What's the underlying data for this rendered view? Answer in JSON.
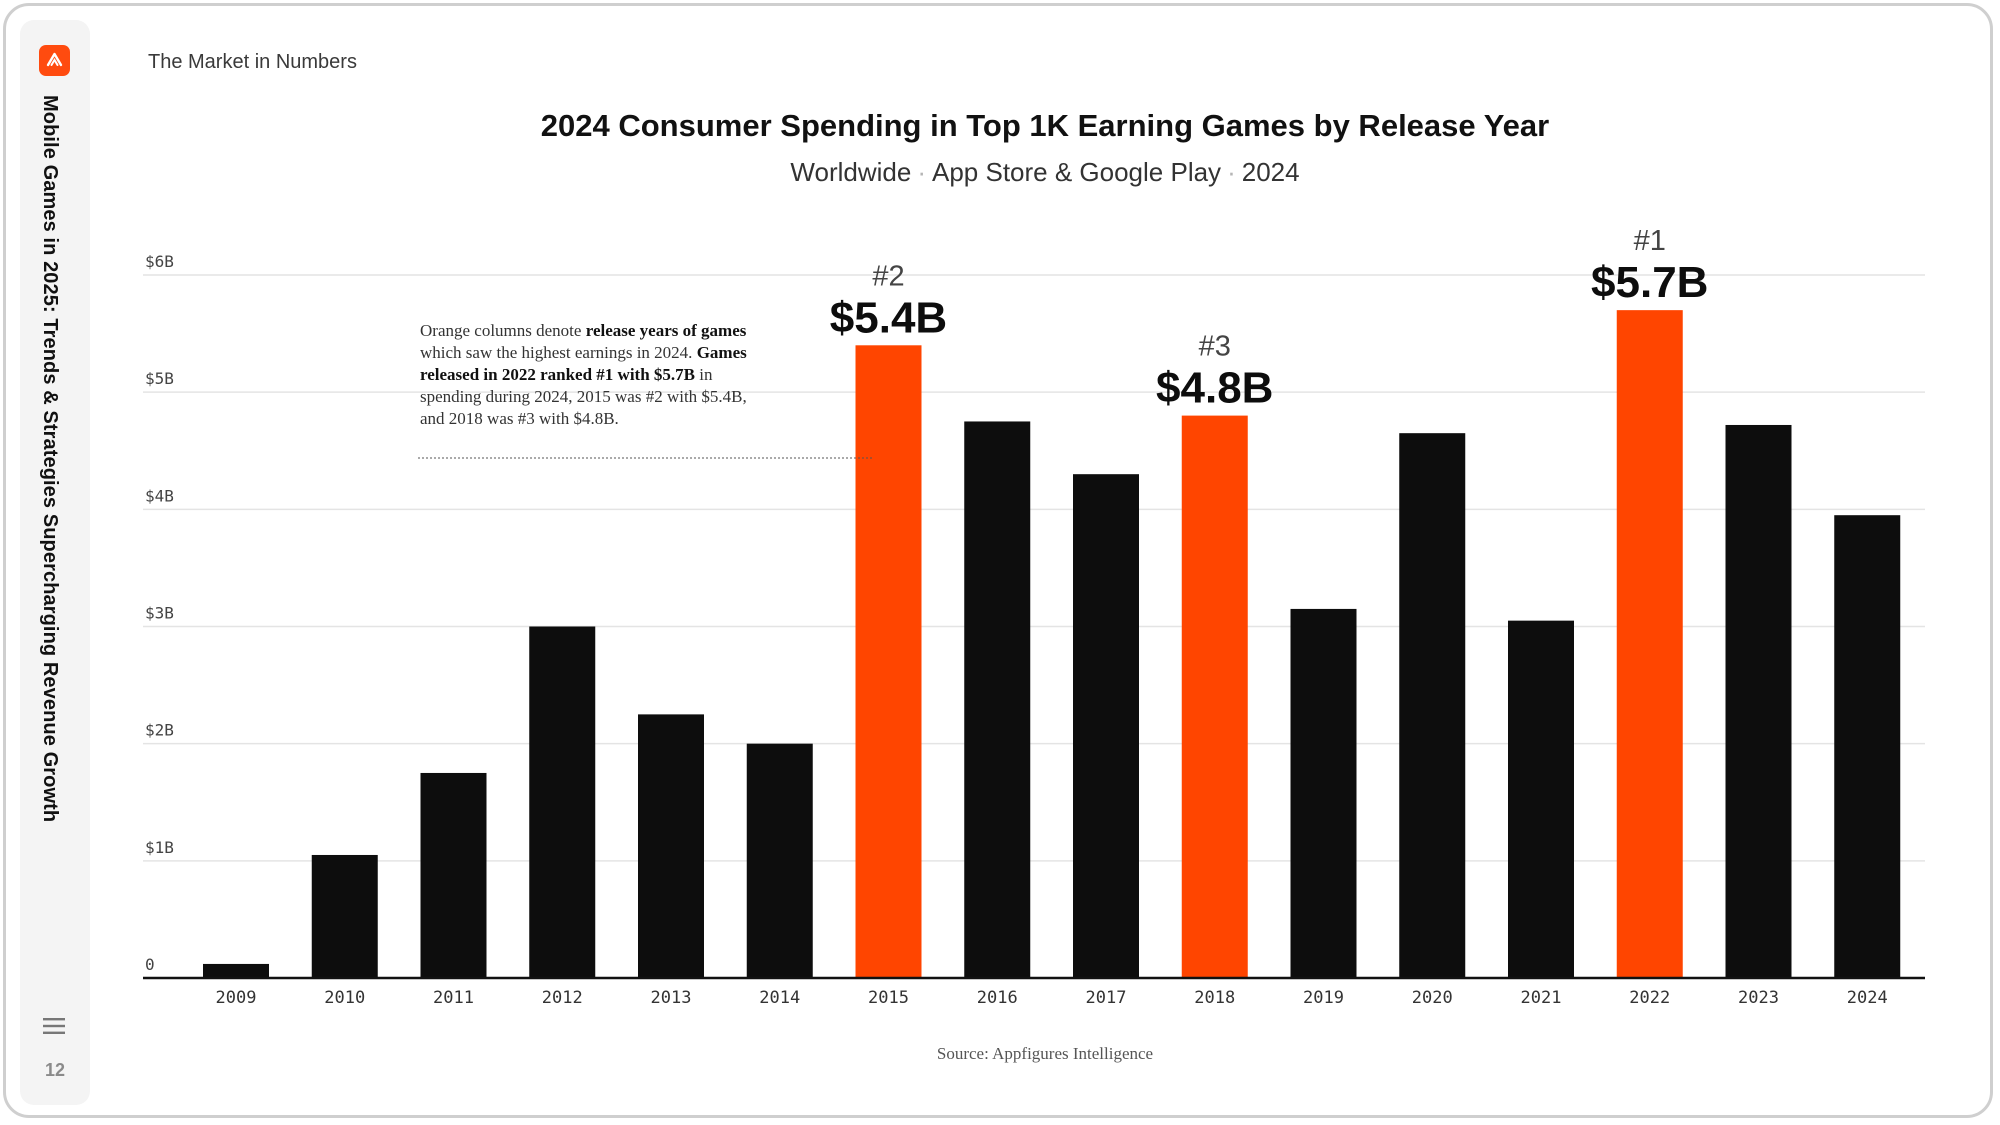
{
  "sidebar": {
    "doc_title": "Mobile Games in 2025: Trends & Strategies Supercharging Revenue Growth",
    "page_number": "12",
    "logo_icon": "appfigures-logo-icon",
    "menu_icon": "hamburger-menu-icon"
  },
  "section_label": "The Market in Numbers",
  "annotation": {
    "t1": "Orange columns denote ",
    "b1": "release years of games",
    "t2": " which saw the highest earnings in 2024. ",
    "b2": "Games released in 2022 ranked #1 with $5.7B",
    "t3": " in spending during 2024, 2015 was #2 with $5.4B, and 2018 was #3 with $4.8B."
  },
  "source": "Source: Appfigures Intelligence",
  "colors": {
    "highlight": "#ff4500",
    "bar": "#0d0d0d",
    "grid": "#e4e4e4"
  },
  "chart_data": {
    "type": "bar",
    "title": "2024 Consumer Spending in Top 1K Earning Games by Release Year",
    "subtitle": [
      "Worldwide",
      "App Store & Google Play",
      "2024"
    ],
    "categories": [
      "2009",
      "2010",
      "2011",
      "2012",
      "2013",
      "2014",
      "2015",
      "2016",
      "2017",
      "2018",
      "2019",
      "2020",
      "2021",
      "2022",
      "2023",
      "2024"
    ],
    "values": [
      0.12,
      1.05,
      1.75,
      3.0,
      2.25,
      2.0,
      5.4,
      4.75,
      4.3,
      4.8,
      3.15,
      4.65,
      3.05,
      5.7,
      4.72,
      3.95
    ],
    "highlighted": [
      "2015",
      "2018",
      "2022"
    ],
    "ylim": [
      0,
      6
    ],
    "yticks": [
      0,
      1,
      2,
      3,
      4,
      5,
      6
    ],
    "ytick_labels": [
      "0",
      "$1B",
      "$2B",
      "$3B",
      "$4B",
      "$5B",
      "$6B"
    ],
    "bar_labels": [
      {
        "category": "2015",
        "rank": "#2",
        "value": "$5.4B"
      },
      {
        "category": "2018",
        "rank": "#3",
        "value": "$4.8B"
      },
      {
        "category": "2022",
        "rank": "#1",
        "value": "$5.7B"
      }
    ],
    "grid": true,
    "xlabel": "",
    "ylabel": ""
  }
}
